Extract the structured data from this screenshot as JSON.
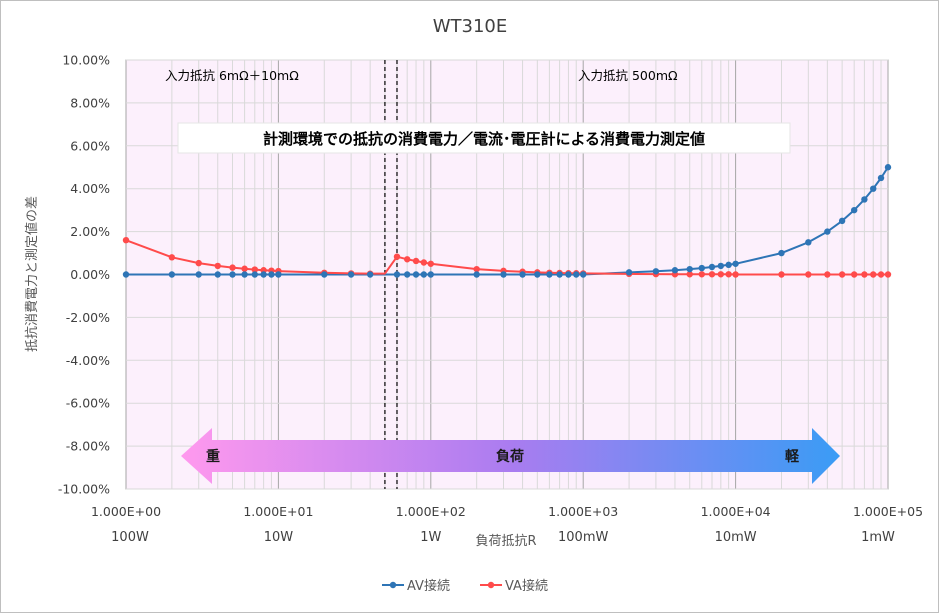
{
  "chart_data": {
    "type": "scatter",
    "title": "WT310E",
    "xlabel": "負荷抵抗R",
    "ylabel": "抵抗消費電力と測定値の差",
    "x_scale": "log",
    "xlim": [
      1,
      100000
    ],
    "ylim": [
      -0.1,
      0.1
    ],
    "x_ticks": [
      1,
      10,
      100,
      1000,
      10000,
      100000
    ],
    "x_tick_labels": [
      "1.000E+00",
      "1.000E+01",
      "1.000E+02",
      "1.000E+03",
      "1.000E+04",
      "1.000E+05"
    ],
    "power_labels": [
      "100W",
      "10W",
      "1W",
      "100mW",
      "10mW",
      "1mW"
    ],
    "y_ticks": [
      0.1,
      0.08,
      0.06,
      0.04,
      0.02,
      0.0,
      -0.02,
      -0.04,
      -0.06,
      -0.08,
      -0.1
    ],
    "y_tick_labels": [
      "10.00%",
      "8.00%",
      "6.00%",
      "4.00%",
      "2.00%",
      "0.00%",
      "-2.00%",
      "-4.00%",
      "-6.00%",
      "-8.00%",
      "-10.00%"
    ],
    "grid": true,
    "legend_position": "bottom",
    "zone_boundaries": [
      50,
      60
    ],
    "zone_labels": [
      "入力抵抗  6mΩ＋10mΩ",
      "入力抵抗   500mΩ"
    ],
    "annotation": "計測環境での抵抗の消費電力／電流･電圧計による消費電力測定値",
    "load_arrow": {
      "left": "重",
      "center": "負荷",
      "right": "軽"
    },
    "series": [
      {
        "name": "AV接続",
        "color": "#2e75b6",
        "x": [
          1,
          2,
          3,
          4,
          5,
          6,
          7,
          8,
          9,
          10,
          20,
          30,
          40,
          60,
          70,
          80,
          90,
          100,
          200,
          300,
          400,
          500,
          600,
          700,
          800,
          900,
          1000,
          2000,
          3000,
          4000,
          5000,
          6000,
          7000,
          8000,
          9000,
          10000,
          20000,
          30000,
          40000,
          50000,
          60000,
          70000,
          80000,
          90000,
          100000
        ],
        "y": [
          0.0,
          0.0,
          0.0,
          0.0,
          0.0,
          0.0,
          0.0,
          0.0,
          0.0,
          0.0,
          0.0,
          0.0,
          0.0,
          0.0,
          0.0,
          0.0,
          0.0,
          0.0,
          0.0,
          0.0,
          0.0,
          0.0,
          0.0,
          0.0,
          0.0,
          0.0,
          0.0,
          0.001,
          0.0015,
          0.002,
          0.0025,
          0.003,
          0.0035,
          0.004,
          0.0045,
          0.005,
          0.01,
          0.015,
          0.02,
          0.025,
          0.03,
          0.035,
          0.04,
          0.045,
          0.05
        ]
      },
      {
        "name": "VA接続",
        "color": "#ff4b4b",
        "x": [
          1,
          2,
          3,
          4,
          5,
          6,
          7,
          8,
          9,
          10,
          20,
          30,
          40,
          60,
          70,
          80,
          90,
          100,
          200,
          300,
          400,
          500,
          600,
          700,
          800,
          900,
          1000,
          2000,
          3000,
          4000,
          5000,
          6000,
          7000,
          8000,
          9000,
          10000,
          20000,
          30000,
          40000,
          50000,
          60000,
          70000,
          80000,
          90000,
          100000
        ],
        "y": [
          0.016,
          0.008,
          0.0053,
          0.004,
          0.0032,
          0.0027,
          0.0023,
          0.002,
          0.0018,
          0.0016,
          0.0008,
          0.0005,
          0.0004,
          0.0083,
          0.0071,
          0.0063,
          0.0056,
          0.005,
          0.0025,
          0.0017,
          0.0013,
          0.001,
          0.0008,
          0.0007,
          0.0006,
          0.0006,
          0.0005,
          0.0003,
          0.0002,
          0.0001,
          0.0001,
          0.0001,
          0.0001,
          0.0001,
          0.0001,
          0.0,
          0.0,
          0.0,
          0.0,
          0.0,
          0.0,
          0.0,
          0.0,
          0.0,
          0.0
        ]
      }
    ]
  }
}
